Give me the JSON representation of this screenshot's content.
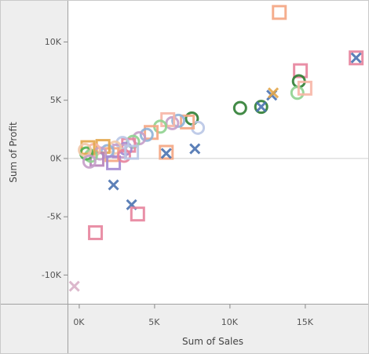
{
  "chart_data": {
    "type": "scatter",
    "title": "",
    "xlabel": "Sum of Sales",
    "ylabel": "Sum of Profit",
    "xlim": [
      -700,
      19200
    ],
    "ylim": [
      -12500,
      13500
    ],
    "x_ticks": [
      {
        "value": 0,
        "label": "0K"
      },
      {
        "value": 5000,
        "label": "5K"
      },
      {
        "value": 10000,
        "label": "10K"
      },
      {
        "value": 15000,
        "label": "15K"
      }
    ],
    "y_ticks": [
      {
        "value": 10000,
        "label": "10K"
      },
      {
        "value": 5000,
        "label": "5K"
      },
      {
        "value": 0,
        "label": "0K"
      },
      {
        "value": -5000,
        "label": "-5K"
      },
      {
        "value": -10000,
        "label": "-10K"
      }
    ],
    "grid": false,
    "zero_line": true,
    "legend": "none",
    "colors": {
      "frame_bg": "#ffffff",
      "axis_panel_bg": "#eeeeee",
      "divider": "#a0a0a0",
      "zero_line": "#cfcfcf",
      "tick_label": "#555555"
    },
    "points": [
      {
        "x": 13300,
        "y": 12500,
        "shape": "square",
        "color": "#f4a582"
      },
      {
        "x": 18400,
        "y": 8600,
        "shape": "square",
        "color": "#e7839c"
      },
      {
        "x": 18400,
        "y": 8600,
        "shape": "x",
        "color": "#4a72b0"
      },
      {
        "x": 14700,
        "y": 7500,
        "shape": "square",
        "color": "#e7839c"
      },
      {
        "x": 14600,
        "y": 6600,
        "shape": "circle",
        "color": "#2e7d32"
      },
      {
        "x": 14500,
        "y": 5600,
        "shape": "circle",
        "color": "#8fd18f"
      },
      {
        "x": 15000,
        "y": 6000,
        "shape": "square",
        "color": "#f7b5a5"
      },
      {
        "x": 12800,
        "y": 5400,
        "shape": "x",
        "color": "#4a72b0"
      },
      {
        "x": 12900,
        "y": 5600,
        "shape": "x",
        "color": "#e3a64a"
      },
      {
        "x": 12100,
        "y": 4400,
        "shape": "circle",
        "color": "#2e7d32"
      },
      {
        "x": 12100,
        "y": 4400,
        "shape": "x",
        "color": "#4a72b0"
      },
      {
        "x": 10700,
        "y": 4300,
        "shape": "circle",
        "color": "#2e7d32"
      },
      {
        "x": 7500,
        "y": 3400,
        "shape": "circle",
        "color": "#2e7d32"
      },
      {
        "x": 7900,
        "y": 2600,
        "shape": "circle",
        "color": "#b9c7e6"
      },
      {
        "x": 7200,
        "y": 3100,
        "shape": "square",
        "color": "#f4a582"
      },
      {
        "x": 6600,
        "y": 3200,
        "shape": "circle",
        "color": "#8fb3d8"
      },
      {
        "x": 6200,
        "y": 3000,
        "shape": "circle",
        "color": "#c59ec9"
      },
      {
        "x": 5900,
        "y": 3300,
        "shape": "square",
        "color": "#f7b5a5"
      },
      {
        "x": 5400,
        "y": 2700,
        "shape": "circle",
        "color": "#8fd18f"
      },
      {
        "x": 4800,
        "y": 2200,
        "shape": "square",
        "color": "#f4a582"
      },
      {
        "x": 4500,
        "y": 2000,
        "shape": "circle",
        "color": "#8fb3d8"
      },
      {
        "x": 4000,
        "y": 1700,
        "shape": "circle",
        "color": "#c59ec9"
      },
      {
        "x": 3600,
        "y": 1400,
        "shape": "circle",
        "color": "#8fd18f"
      },
      {
        "x": 3300,
        "y": 1100,
        "shape": "square",
        "color": "#e7839c"
      },
      {
        "x": 3100,
        "y": 800,
        "shape": "circle",
        "color": "#a48ad2"
      },
      {
        "x": 2900,
        "y": 1300,
        "shape": "circle",
        "color": "#b9c7e6"
      },
      {
        "x": 2700,
        "y": 600,
        "shape": "square",
        "color": "#c59ec9"
      },
      {
        "x": 2400,
        "y": 900,
        "shape": "circle",
        "color": "#f2c9a8"
      },
      {
        "x": 2200,
        "y": 300,
        "shape": "square",
        "color": "#f4a582"
      },
      {
        "x": 1900,
        "y": 600,
        "shape": "circle",
        "color": "#8fb3d8"
      },
      {
        "x": 1600,
        "y": 1000,
        "shape": "square",
        "color": "#e3a64a"
      },
      {
        "x": 1400,
        "y": 400,
        "shape": "circle",
        "color": "#c59ec9"
      },
      {
        "x": 1200,
        "y": -100,
        "shape": "square",
        "color": "#b782b9"
      },
      {
        "x": 1000,
        "y": 700,
        "shape": "circle",
        "color": "#f7b5a5"
      },
      {
        "x": 800,
        "y": 200,
        "shape": "circle",
        "color": "#8fd18f"
      },
      {
        "x": 600,
        "y": 900,
        "shape": "square",
        "color": "#e3a64a"
      },
      {
        "x": 500,
        "y": 400,
        "shape": "circle",
        "color": "#4caf50"
      },
      {
        "x": 400,
        "y": 700,
        "shape": "circle",
        "color": "#f2c9a8"
      },
      {
        "x": 700,
        "y": -300,
        "shape": "circle",
        "color": "#c59ec9"
      },
      {
        "x": 2300,
        "y": -400,
        "shape": "square",
        "color": "#a48ad2"
      },
      {
        "x": 3000,
        "y": 200,
        "shape": "circle",
        "color": "#e7839c"
      },
      {
        "x": 3500,
        "y": 500,
        "shape": "square",
        "color": "#b9c7e6"
      },
      {
        "x": 5800,
        "y": 500,
        "shape": "square",
        "color": "#f4a582"
      },
      {
        "x": 5800,
        "y": 400,
        "shape": "x",
        "color": "#4a72b0"
      },
      {
        "x": 7700,
        "y": 800,
        "shape": "x",
        "color": "#4a72b0"
      },
      {
        "x": 2300,
        "y": -2300,
        "shape": "x",
        "color": "#4a72b0"
      },
      {
        "x": 3500,
        "y": -4000,
        "shape": "x",
        "color": "#4a72b0"
      },
      {
        "x": 3900,
        "y": -4800,
        "shape": "square",
        "color": "#e7839c"
      },
      {
        "x": 1100,
        "y": -6400,
        "shape": "square",
        "color": "#e7839c"
      },
      {
        "x": -300,
        "y": -11000,
        "shape": "x",
        "color": "#d8b0c7"
      }
    ]
  }
}
